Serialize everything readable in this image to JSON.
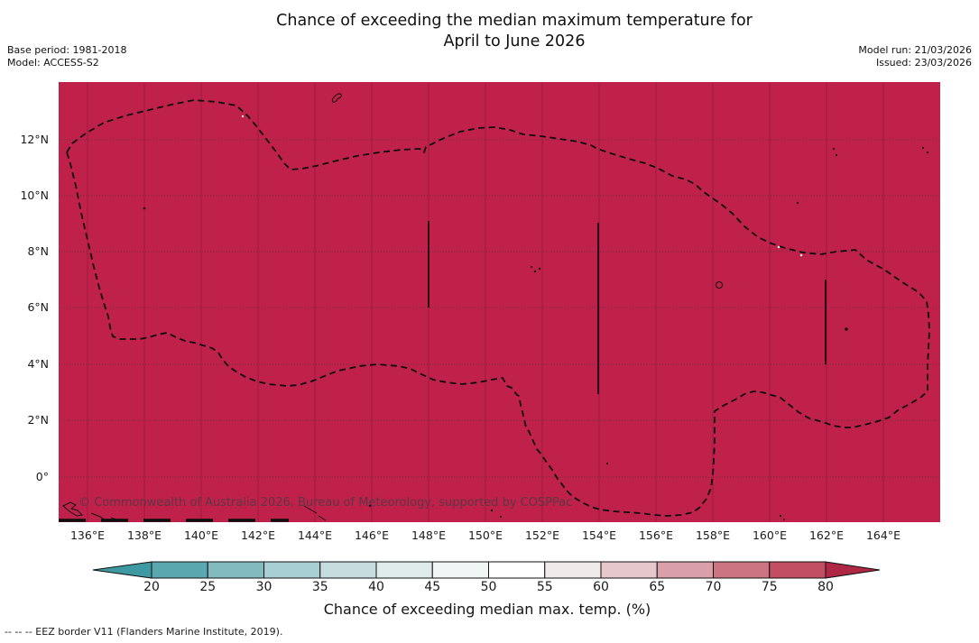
{
  "title": {
    "line1": "Chance of exceeding the median maximum temperature for",
    "line2": "April to June 2026"
  },
  "meta": {
    "base_period": "Base period: 1981-2018",
    "model": "Model: ACCESS-S2",
    "model_run": "Model run: 21/03/2026",
    "issued": "Issued: 23/03/2026"
  },
  "map": {
    "watermark": "© Commonwealth of Australia 2026, Bureau of Meteorology, supported by COSPPac",
    "fill_color": "#c0214a",
    "gridline_color": "#971c3e",
    "eez_border_color": "#0d0d0d"
  },
  "axes": {
    "x_tick_labels": [
      "136°E",
      "138°E",
      "140°E",
      "142°E",
      "144°E",
      "146°E",
      "148°E",
      "150°E",
      "152°E",
      "154°E",
      "156°E",
      "158°E",
      "160°E",
      "162°E",
      "164°E"
    ],
    "y_tick_labels": [
      "12°N",
      "10°N",
      "8°N",
      "6°N",
      "4°N",
      "2°N",
      "0°"
    ]
  },
  "colorbar": {
    "tick_labels": [
      "20",
      "25",
      "30",
      "35",
      "40",
      "45",
      "50",
      "55",
      "60",
      "65",
      "70",
      "75",
      "80"
    ],
    "segment_colors": [
      "#5aa7af",
      "#82bac0",
      "#a7ced2",
      "#c6dcdf",
      "#dfeaeb",
      "#f1f5f5",
      "#ffffff",
      "#f0eaea",
      "#e6c8cc",
      "#d9a0a9",
      "#cc7482",
      "#c14e62"
    ],
    "left_arrow_color": "#3f99a2",
    "right_arrow_color": "#ae2745",
    "label": "Chance of exceeding median max. temp. (%)"
  },
  "footer": {
    "eez_note": "--  --  -- EEZ border V11 (Flanders Marine Institute, 2019)."
  },
  "chart_data": {
    "type": "heatmap",
    "title": "Chance of exceeding the median maximum temperature for April to June 2026",
    "value_label": "Chance of exceeding median max. temp. (%)",
    "base_period": "1981-2018",
    "model": "ACCESS-S2",
    "model_run_date": "21/03/2026",
    "issued_date": "23/03/2026",
    "x_axis": {
      "tick_labels": [
        "136°E",
        "138°E",
        "140°E",
        "142°E",
        "144°E",
        "146°E",
        "148°E",
        "150°E",
        "152°E",
        "154°E",
        "156°E",
        "158°E",
        "160°E",
        "162°E",
        "164°E"
      ],
      "range_deg_east": [
        135,
        166
      ]
    },
    "y_axis": {
      "tick_labels": [
        "12°N",
        "10°N",
        "8°N",
        "6°N",
        "4°N",
        "2°N",
        "0°"
      ],
      "range_deg_north": [
        -1.7,
        14.1
      ]
    },
    "colorbar_ticks": [
      20,
      25,
      30,
      35,
      40,
      45,
      50,
      55,
      60,
      65,
      70,
      75,
      80
    ],
    "colorbar_open_ended": true,
    "field_summary": "Entire mapped region (western Pacific EEZ area) is shaded in the highest category, i.e. greater than 80% chance of exceeding the median maximum temperature.",
    "uniform_value_percent": ">80",
    "overlays": [
      "Dashed EEZ border (V11)",
      "island coastlines",
      "latitude/longitude graticule"
    ]
  }
}
